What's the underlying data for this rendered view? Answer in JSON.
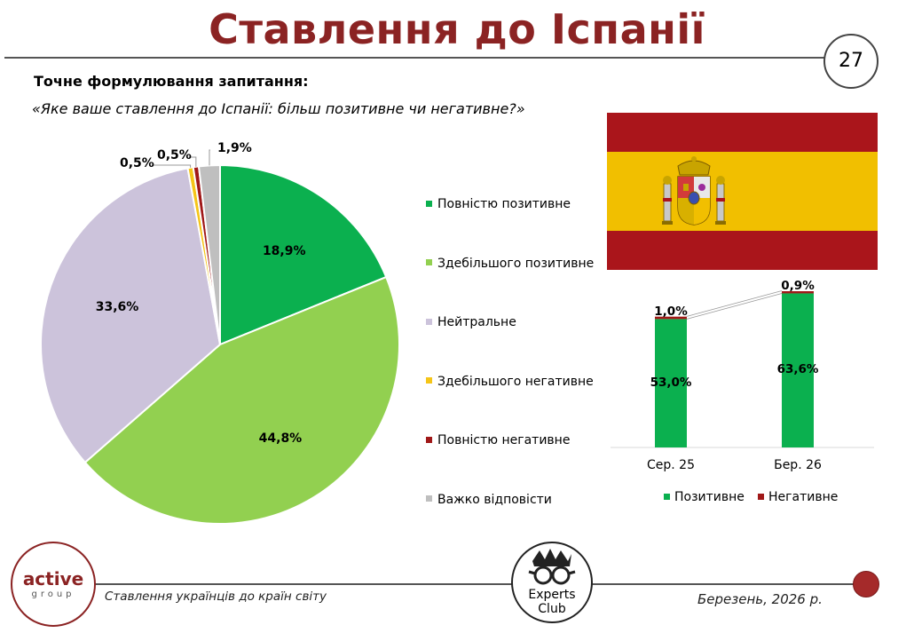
{
  "header": {
    "title": "Ставлення до Іспанії",
    "page_number": "27"
  },
  "question": {
    "label": "Точне формулювання запитання:",
    "text": "«Яке ваше ставлення до Іспанії: більш позитивне чи негативне?»"
  },
  "chart_data": [
    {
      "type": "pie",
      "labels": [
        "Повністю позитивне",
        "Здебільшого позитивне",
        "Нейтральне",
        "Здебільшого негативне",
        "Повністю негативне",
        "Важко відповісти"
      ],
      "values": [
        18.9,
        44.8,
        33.6,
        0.5,
        0.5,
        1.9
      ],
      "value_labels": [
        "18,9%",
        "44,8%",
        "33,6%",
        "0,5%",
        "0,5%",
        "1,9%"
      ],
      "colors": [
        "#0bb04f",
        "#92d050",
        "#ccc3db",
        "#f5c518",
        "#a01818",
        "#bfbfbf"
      ],
      "legend_position": "right"
    },
    {
      "type": "bar",
      "stacked": true,
      "categories": [
        "Сер. 25",
        "Бер. 26"
      ],
      "series": [
        {
          "name": "Позитивне",
          "values": [
            53.0,
            63.6
          ],
          "labels": [
            "53,0%",
            "63,6%"
          ],
          "color": "#0bb04f"
        },
        {
          "name": "Негативне",
          "values": [
            1.0,
            0.9
          ],
          "labels": [
            "1,0%",
            "0,9%"
          ],
          "color": "#a01818"
        }
      ],
      "legend_position": "bottom"
    }
  ],
  "footer": {
    "left_text": "Ставлення українців до країн світу",
    "right_text": "Березень, 2026 р.",
    "logo_left": {
      "word1": "active",
      "word2": "group"
    },
    "logo_center": {
      "line1": "Experts",
      "line2": "Club"
    }
  },
  "flag": {
    "colors": [
      "#aa151b",
      "#f1bf00"
    ]
  }
}
